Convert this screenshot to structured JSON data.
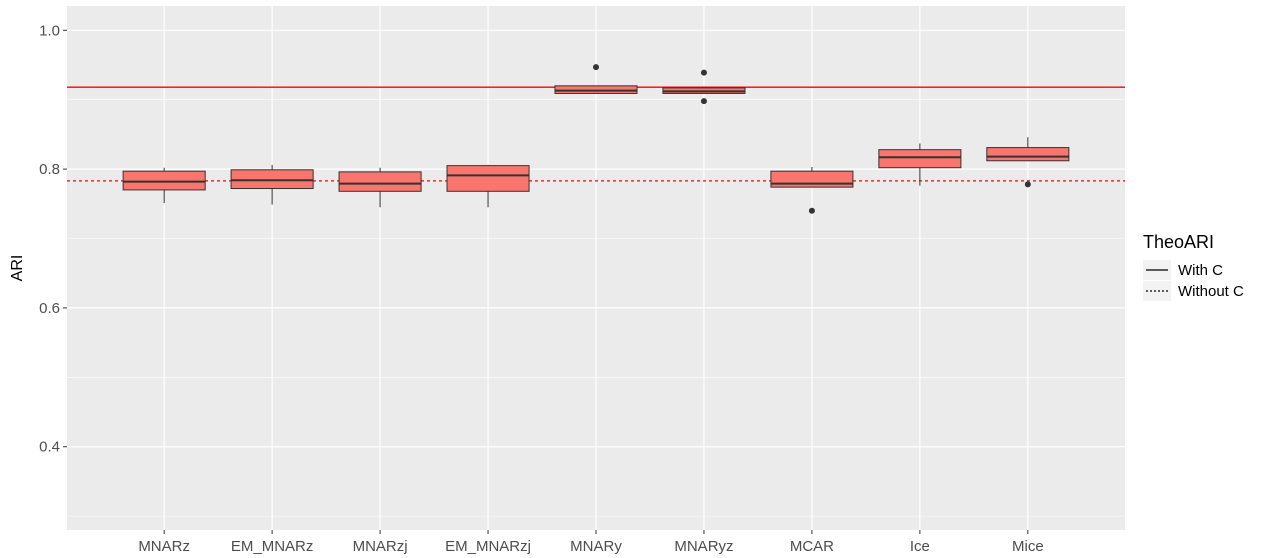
{
  "chart_data": {
    "type": "boxplot",
    "ylabel": "ARI",
    "xlabel": "",
    "ylim": [
      0.28,
      1.035
    ],
    "yticks": [
      0.4,
      0.6,
      0.8,
      1.0
    ],
    "ytick_labels": [
      "0.4",
      "0.6",
      "0.8",
      "1.0"
    ],
    "grid": true,
    "fill_color": "#F8766D",
    "categories": [
      "MNARz",
      "EM_MNARz",
      "MNARzj",
      "EM_MNARzj",
      "MNARy",
      "MNARyz",
      "MCAR",
      "Ice",
      "Mice"
    ],
    "boxes": [
      {
        "q1": 0.77,
        "median": 0.782,
        "q3": 0.797,
        "whisker_low": 0.751,
        "whisker_high": 0.802,
        "outliers": []
      },
      {
        "q1": 0.772,
        "median": 0.784,
        "q3": 0.799,
        "whisker_low": 0.749,
        "whisker_high": 0.806,
        "outliers": []
      },
      {
        "q1": 0.768,
        "median": 0.779,
        "q3": 0.796,
        "whisker_low": 0.745,
        "whisker_high": 0.802,
        "outliers": []
      },
      {
        "q1": 0.768,
        "median": 0.791,
        "q3": 0.805,
        "whisker_low": 0.745,
        "whisker_high": 0.806,
        "outliers": []
      },
      {
        "q1": 0.909,
        "median": 0.913,
        "q3": 0.92,
        "whisker_low": 0.909,
        "whisker_high": 0.92,
        "outliers": [
          0.947
        ]
      },
      {
        "q1": 0.909,
        "median": 0.912,
        "q3": 0.917,
        "whisker_low": 0.909,
        "whisker_high": 0.917,
        "outliers": [
          0.939,
          0.898
        ]
      },
      {
        "q1": 0.774,
        "median": 0.779,
        "q3": 0.797,
        "whisker_low": 0.774,
        "whisker_high": 0.803,
        "outliers": [
          0.74
        ]
      },
      {
        "q1": 0.802,
        "median": 0.817,
        "q3": 0.828,
        "whisker_low": 0.776,
        "whisker_high": 0.837,
        "outliers": []
      },
      {
        "q1": 0.812,
        "median": 0.818,
        "q3": 0.831,
        "whisker_low": 0.812,
        "whisker_high": 0.846,
        "outliers": [
          0.778
        ]
      }
    ],
    "reference_lines": [
      {
        "name": "With C",
        "value": 0.918,
        "color": "#FF0000",
        "style": "solid"
      },
      {
        "name": "Without C",
        "value": 0.783,
        "color": "#FF0000",
        "style": "dashed"
      }
    ],
    "legend": {
      "title": "TheoARI",
      "entries": [
        "With C",
        "Without C"
      ],
      "placement": "right"
    }
  }
}
